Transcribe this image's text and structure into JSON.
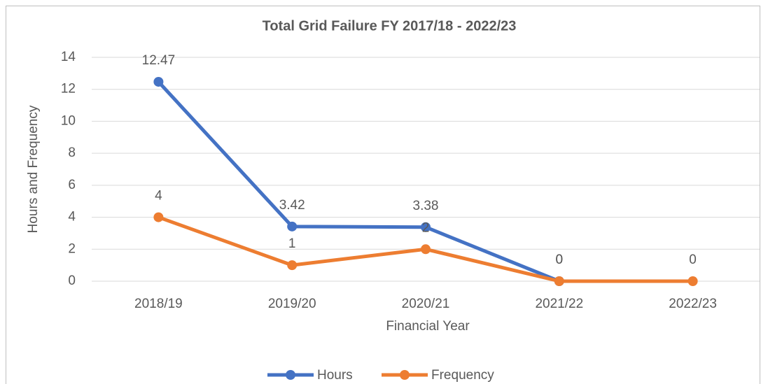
{
  "chart_data": {
    "type": "line",
    "title": "Total Grid Failure FY 2017/18 - 2022/23",
    "x_label": "Financial Year",
    "y_label": "Hours and Frequency",
    "categories": [
      "2018/19",
      "2019/20",
      "2020/21",
      "2021/22",
      "2022/23"
    ],
    "series": [
      {
        "name": "Hours",
        "color": "#4472c4",
        "values": [
          12.47,
          3.42,
          3.38,
          0,
          null
        ]
      },
      {
        "name": "Frequency",
        "color": "#ed7d31",
        "values": [
          4,
          1,
          2,
          0,
          0
        ]
      }
    ],
    "ylim": [
      0,
      14
    ],
    "yticks": [
      0,
      2,
      4,
      6,
      8,
      10,
      12,
      14
    ],
    "grid": true,
    "legend": "bottom"
  }
}
